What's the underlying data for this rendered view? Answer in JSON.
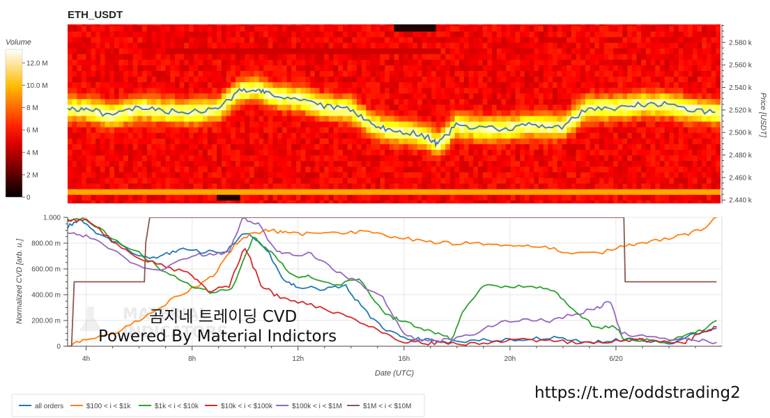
{
  "chart_data": [
    {
      "type": "heatmap",
      "title": "ETH_USDT",
      "ylabel": "Price [USDT]",
      "y_ticks": [
        "2.440 k",
        "2.460 k",
        "2.480 k",
        "2.500 k",
        "2.520 k",
        "2.540 k",
        "2.560 k",
        "2.580 k"
      ],
      "y_tick_values": [
        2440,
        2460,
        2480,
        2500,
        2520,
        2540,
        2560,
        2580
      ],
      "ylim": [
        2437,
        2596
      ],
      "colorbar": {
        "label": "Volume",
        "ticks": [
          "0",
          "2 M",
          "4 M",
          "6 M",
          "8 M",
          "10.0 M",
          "12.0 M"
        ],
        "tick_values": [
          0,
          2,
          4,
          6,
          8,
          10,
          12
        ],
        "range": [
          0,
          13.2
        ],
        "colormap": "hot"
      },
      "price_line_color": "#4a7fb0",
      "price_series": {
        "x": [
          3.3,
          4,
          5,
          6,
          7,
          8,
          9,
          9.8,
          10.5,
          11,
          12,
          13,
          14,
          14.8,
          15.5,
          16.5,
          17,
          17.3,
          18,
          19,
          20,
          21,
          22,
          23,
          24,
          25,
          26,
          27,
          27.8
        ],
        "y": [
          2521,
          2521,
          2515,
          2522,
          2519,
          2518,
          2521,
          2537,
          2539,
          2533,
          2530,
          2523,
          2521,
          2507,
          2502,
          2499,
          2495,
          2489,
          2507,
          2503,
          2504,
          2507,
          2505,
          2522,
          2522,
          2525,
          2525,
          2520,
          2518
        ]
      }
    },
    {
      "type": "line",
      "xlabel": "Date (UTC)",
      "ylabel": "Normalized CVD [arb. u.]",
      "x_ticks": [
        "4h",
        "8h",
        "12h",
        "16h",
        "20h",
        "6/20"
      ],
      "x_tick_values": [
        4,
        8,
        12,
        16,
        20,
        24
      ],
      "xlim": [
        3.3,
        28.0
      ],
      "y_ticks": [
        "0",
        "200.00 m",
        "400.00 m",
        "600.00 m",
        "800.00 m",
        "1.000"
      ],
      "y_tick_values": [
        0,
        0.2,
        0.4,
        0.6,
        0.8,
        1.0
      ],
      "ylim": [
        0,
        1.0
      ],
      "grid": true,
      "legend_position": "bottom",
      "series": [
        {
          "name": "all orders",
          "color": "#1f77b4",
          "x": [
            3.3,
            3.8,
            4.5,
            5.2,
            6,
            6.8,
            7.5,
            8.5,
            9.3,
            10,
            10.8,
            11.5,
            12,
            13,
            13.8,
            14.5,
            15.2,
            16,
            16.8,
            17.5,
            18.5,
            19.5,
            20.5,
            21.5,
            22.5,
            23.5,
            24.5,
            25.3,
            26,
            27,
            27.8
          ],
          "y": [
            0.93,
            0.99,
            0.86,
            0.8,
            0.69,
            0.7,
            0.75,
            0.73,
            0.74,
            0.88,
            0.76,
            0.5,
            0.46,
            0.44,
            0.47,
            0.28,
            0.14,
            0.07,
            0.05,
            0.03,
            0.04,
            0.05,
            0.05,
            0.07,
            0.04,
            0.03,
            0.06,
            0.04,
            0.02,
            0.1,
            0.14
          ]
        },
        {
          "name": "$100 < i < $1k",
          "color": "#ff7f0e",
          "x": [
            3.3,
            4,
            5,
            6,
            7,
            8,
            8.8,
            9.6,
            10.3,
            11,
            11.5,
            12.5,
            13.5,
            14.5,
            15.5,
            16.5,
            17.5,
            18.5,
            19.5,
            20.5,
            21.5,
            22.5,
            23.5,
            24.5,
            25.5,
            26.5,
            27.2,
            27.8
          ],
          "y": [
            0.0,
            0.05,
            0.1,
            0.2,
            0.33,
            0.45,
            0.55,
            0.78,
            0.88,
            0.9,
            0.88,
            0.87,
            0.88,
            0.89,
            0.85,
            0.82,
            0.8,
            0.8,
            0.79,
            0.79,
            0.76,
            0.72,
            0.73,
            0.79,
            0.82,
            0.86,
            0.9,
            1.0
          ]
        },
        {
          "name": "$1k < i < $10k",
          "color": "#2ca02c",
          "x": [
            3.3,
            4,
            5,
            6,
            7,
            8,
            8.8,
            9.5,
            10.3,
            11,
            11.8,
            12.5,
            13.5,
            14.3,
            15.2,
            15.8,
            16.5,
            17.3,
            17.8,
            18.3,
            19,
            20,
            21,
            21.8,
            22.5,
            23.2,
            24,
            24.3,
            25,
            26,
            27,
            27.8
          ],
          "y": [
            0.96,
            0.99,
            0.83,
            0.73,
            0.57,
            0.46,
            0.42,
            0.44,
            0.85,
            0.73,
            0.55,
            0.54,
            0.48,
            0.52,
            0.27,
            0.2,
            0.15,
            0.1,
            0.05,
            0.3,
            0.47,
            0.47,
            0.46,
            0.41,
            0.27,
            0.15,
            0.15,
            0.05,
            0.05,
            0.04,
            0.1,
            0.2
          ]
        },
        {
          "name": "$10k < i < $100k",
          "color": "#d62728",
          "x": [
            3.3,
            4,
            5,
            6,
            7,
            8,
            8.6,
            9.4,
            10,
            10.6,
            11.2,
            12,
            13,
            14,
            15,
            16,
            16.8,
            17.5,
            18.5,
            19.5,
            20.5,
            21.5,
            22.5,
            23.5,
            24.5,
            25.5,
            26.5,
            27.2,
            27.8
          ],
          "y": [
            0.97,
            0.99,
            0.82,
            0.69,
            0.62,
            0.55,
            0.42,
            0.47,
            0.77,
            0.48,
            0.39,
            0.35,
            0.29,
            0.22,
            0.12,
            0.04,
            0.02,
            0.03,
            0.02,
            0.03,
            0.05,
            0.04,
            0.03,
            0.02,
            0.05,
            0.04,
            0.02,
            0.1,
            0.15
          ]
        },
        {
          "name": "$100k < i < $1M",
          "color": "#9467bd",
          "x": [
            3.3,
            4,
            5,
            6,
            7,
            8,
            8.8,
            9.4,
            9.9,
            10.5,
            11.2,
            11.8,
            12.5,
            13.3,
            14.2,
            15.2,
            16,
            16.8,
            17.5,
            18.5,
            19.5,
            20.5,
            21.5,
            22.5,
            23.3,
            23.8,
            24.2,
            25,
            26,
            27,
            27.8
          ],
          "y": [
            0.88,
            0.85,
            0.75,
            0.62,
            0.6,
            0.71,
            0.71,
            0.73,
            0.99,
            0.95,
            0.73,
            0.71,
            0.72,
            0.6,
            0.5,
            0.38,
            0.1,
            0.04,
            0.05,
            0.08,
            0.18,
            0.2,
            0.2,
            0.25,
            0.3,
            0.35,
            0.1,
            0.08,
            0.06,
            0.05,
            0.03
          ]
        },
        {
          "name": "$1M < i < $10M",
          "color": "#8c564b",
          "x": [
            3.3,
            3.45,
            3.55,
            6.2,
            6.25,
            6.4,
            24.3,
            24.35,
            27.8
          ],
          "y": [
            0.0,
            0.0,
            0.5,
            0.5,
            0.8,
            1.0,
            1.0,
            0.5,
            0.5
          ]
        }
      ]
    }
  ],
  "watermark": {
    "logo_lines": [
      "MATERIAL",
      "INDICATORS"
    ],
    "korean_title": "곰지네 트레이딩 CVD",
    "powered_by": "Powered By Material Indictors"
  },
  "url_text": "https://t.me/oddstrading2"
}
